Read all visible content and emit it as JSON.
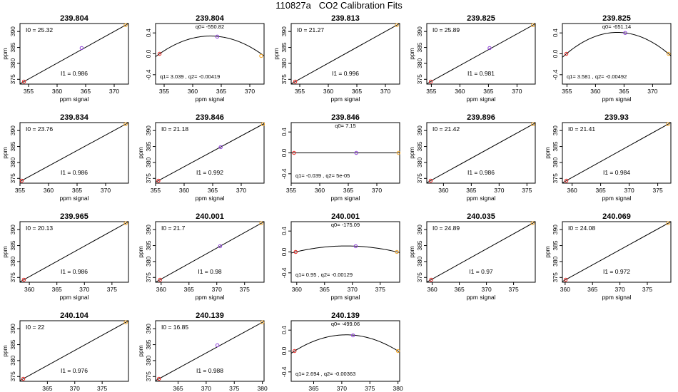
{
  "page": {
    "title": "110827a   CO2 Calibration Fits",
    "xlabel": "ppm signal",
    "ylabel": "ppm"
  },
  "chart_data": [
    {
      "type": "line",
      "subtype": "linear",
      "title": "239.804",
      "xlim": [
        353.5,
        372.5
      ],
      "ylim": [
        373.5,
        392.5
      ],
      "xticks": [
        355,
        360,
        365,
        370
      ],
      "yticks": [
        375,
        380,
        385,
        390
      ],
      "points": [
        [
          354.2,
          374.3
        ],
        [
          364.3,
          384.8
        ],
        [
          372.0,
          392.0
        ]
      ],
      "fit_line": [
        [
          354.2,
          374.3
        ],
        [
          372.0,
          392.0
        ]
      ],
      "annotations": {
        "top": "I0 = 25.32",
        "bottom": "I1 = 0.986"
      }
    },
    {
      "type": "line",
      "subtype": "quadratic",
      "title": "239.804",
      "xlim": [
        353.5,
        372.5
      ],
      "ylim": [
        -0.58,
        0.58
      ],
      "xticks": [
        355,
        360,
        365,
        370
      ],
      "yticks": [
        -0.4,
        0.0,
        0.4
      ],
      "ytick_labels": [
        "-0.4",
        "0.0",
        "0.4"
      ],
      "points": [
        [
          354.2,
          0.0
        ],
        [
          364.3,
          0.33
        ],
        [
          372.0,
          -0.04
        ]
      ],
      "vertex": [
        363.4,
        0.34
      ],
      "annotations": {
        "top": "q0= -550.82",
        "bottom": "q1= 3.039 , q2= -0.00419"
      }
    },
    {
      "type": "line",
      "subtype": "linear",
      "title": "239.813",
      "xlim": [
        353.5,
        372.5
      ],
      "ylim": [
        373.5,
        392.5
      ],
      "xticks": [
        355,
        360,
        365,
        370
      ],
      "yticks": [
        375,
        380,
        385,
        390
      ],
      "points": [
        [
          354.2,
          374.3
        ],
        [
          372.0,
          392.0
        ]
      ],
      "fit_line": [
        [
          354.2,
          374.3
        ],
        [
          372.0,
          392.0
        ]
      ],
      "annotations": {
        "top": "I0 = 21.27",
        "bottom": "I1 = 0.996"
      }
    },
    {
      "type": "line",
      "subtype": "linear",
      "title": "239.825",
      "xlim": [
        354.2,
        373.2
      ],
      "ylim": [
        373.5,
        392.5
      ],
      "xticks": [
        355,
        360,
        365,
        370
      ],
      "yticks": [
        375,
        380,
        385,
        390
      ],
      "points": [
        [
          354.9,
          374.3
        ],
        [
          365.2,
          384.8
        ],
        [
          372.8,
          392.0
        ]
      ],
      "fit_line": [
        [
          354.9,
          374.3
        ],
        [
          372.8,
          392.0
        ]
      ],
      "annotations": {
        "top": "I0 = 25.89",
        "bottom": "I1 = 0.981"
      }
    },
    {
      "type": "line",
      "subtype": "quadratic",
      "title": "239.825",
      "xlim": [
        354.2,
        373.2
      ],
      "ylim": [
        -0.58,
        0.58
      ],
      "xticks": [
        355,
        360,
        365,
        370
      ],
      "yticks": [
        -0.4,
        0.0,
        0.4
      ],
      "ytick_labels": [
        "-0.4",
        "0.0",
        "0.4"
      ],
      "points": [
        [
          354.9,
          0.0
        ],
        [
          365.2,
          0.4
        ],
        [
          372.8,
          0.0
        ]
      ],
      "vertex": [
        363.8,
        0.41
      ],
      "annotations": {
        "top": "q0= -651.14",
        "bottom": "q1= 3.581 , q2= -0.00492"
      }
    },
    {
      "type": "line",
      "subtype": "linear",
      "title": "239.834",
      "xlim": [
        355.0,
        374.0
      ],
      "ylim": [
        373.5,
        392.5
      ],
      "xticks": [
        355,
        360,
        365,
        370
      ],
      "yticks": [
        375,
        380,
        385,
        390
      ],
      "points": [
        [
          355.3,
          374.3
        ],
        [
          373.5,
          392.0
        ]
      ],
      "fit_line": [
        [
          355.3,
          374.3
        ],
        [
          373.5,
          392.0
        ]
      ],
      "annotations": {
        "top": "I0 = 23.76",
        "bottom": "I1 = 0.986"
      }
    },
    {
      "type": "line",
      "subtype": "linear",
      "title": "239.846",
      "xlim": [
        355.0,
        374.0
      ],
      "ylim": [
        373.5,
        392.5
      ],
      "xticks": [
        355,
        360,
        365,
        370
      ],
      "yticks": [
        375,
        380,
        385,
        390
      ],
      "points": [
        [
          355.5,
          374.3
        ],
        [
          366.4,
          384.8
        ],
        [
          373.8,
          392.0
        ]
      ],
      "fit_line": [
        [
          355.5,
          374.3
        ],
        [
          373.8,
          392.0
        ]
      ],
      "annotations": {
        "top": "I0 = 21.18",
        "bottom": "I1 = 0.992"
      }
    },
    {
      "type": "line",
      "subtype": "quadratic",
      "title": "239.846",
      "xlim": [
        355.0,
        374.0
      ],
      "ylim": [
        -0.58,
        0.58
      ],
      "xticks": [
        355,
        360,
        365,
        370
      ],
      "yticks": [
        -0.4,
        0.0,
        0.4
      ],
      "ytick_labels": [
        "-0.4",
        "0.0",
        "0.4"
      ],
      "points": [
        [
          355.5,
          0.0
        ],
        [
          366.4,
          0.0
        ],
        [
          373.8,
          0.0
        ]
      ],
      "vertex": [
        366.4,
        0.0
      ],
      "annotations": {
        "top": "q0= 7.15",
        "bottom": "q1= -0.039 , q2= 5e-05"
      }
    },
    {
      "type": "line",
      "subtype": "linear",
      "title": "239.896",
      "xlim": [
        357.0,
        376.5
      ],
      "ylim": [
        373.5,
        392.5
      ],
      "xticks": [
        360,
        365,
        370,
        375
      ],
      "yticks": [
        375,
        380,
        385,
        390
      ],
      "points": [
        [
          357.7,
          374.3
        ],
        [
          376.1,
          392.0
        ]
      ],
      "fit_line": [
        [
          357.7,
          374.3
        ],
        [
          376.1,
          392.0
        ]
      ],
      "annotations": {
        "top": "I0 = 21.42",
        "bottom": "I1 = 0.986"
      }
    },
    {
      "type": "line",
      "subtype": "linear",
      "title": "239.93",
      "xlim": [
        358.3,
        377.3
      ],
      "ylim": [
        373.5,
        392.5
      ],
      "xticks": [
        360,
        365,
        370,
        375
      ],
      "yticks": [
        375,
        380,
        385,
        390
      ],
      "points": [
        [
          359.0,
          374.3
        ],
        [
          376.8,
          392.0
        ]
      ],
      "fit_line": [
        [
          359.0,
          374.3
        ],
        [
          376.8,
          392.0
        ]
      ],
      "annotations": {
        "top": "I0 = 21.41",
        "bottom": "I1 = 0.984"
      }
    },
    {
      "type": "line",
      "subtype": "linear",
      "title": "239.965",
      "xlim": [
        358.3,
        378.0
      ],
      "ylim": [
        373.5,
        392.5
      ],
      "xticks": [
        360,
        365,
        370,
        375
      ],
      "yticks": [
        375,
        380,
        385,
        390
      ],
      "points": [
        [
          359.0,
          374.3
        ],
        [
          377.5,
          392.0
        ]
      ],
      "fit_line": [
        [
          359.0,
          374.3
        ],
        [
          377.5,
          392.0
        ]
      ],
      "annotations": {
        "top": "I0 = 20.13",
        "bottom": "I1 = 0.986"
      }
    },
    {
      "type": "line",
      "subtype": "linear",
      "title": "240.001",
      "xlim": [
        359.0,
        378.5
      ],
      "ylim": [
        373.5,
        392.5
      ],
      "xticks": [
        360,
        365,
        370,
        375
      ],
      "yticks": [
        375,
        380,
        385,
        390
      ],
      "points": [
        [
          359.8,
          374.3
        ],
        [
          370.6,
          384.8
        ],
        [
          378.0,
          392.0
        ]
      ],
      "fit_line": [
        [
          359.8,
          374.3
        ],
        [
          378.0,
          392.0
        ]
      ],
      "annotations": {
        "top": "I0 = 21.7",
        "bottom": "I1 = 0.98"
      }
    },
    {
      "type": "line",
      "subtype": "quadratic",
      "title": "240.001",
      "xlim": [
        359.0,
        378.5
      ],
      "ylim": [
        -0.58,
        0.58
      ],
      "xticks": [
        360,
        365,
        370,
        375
      ],
      "yticks": [
        -0.4,
        0.0,
        0.4
      ],
      "ytick_labels": [
        "-0.4",
        "0.0",
        "0.4"
      ],
      "points": [
        [
          359.8,
          0.0
        ],
        [
          370.6,
          0.11
        ],
        [
          378.0,
          0.0
        ]
      ],
      "vertex": [
        368.9,
        0.115
      ],
      "annotations": {
        "top": "q0= -175.09",
        "bottom": "q1= 0.95 , q2= -0.00129"
      }
    },
    {
      "type": "line",
      "subtype": "linear",
      "title": "240.035",
      "xlim": [
        359.0,
        379.0
      ],
      "ylim": [
        373.5,
        392.5
      ],
      "xticks": [
        360,
        365,
        370,
        375
      ],
      "yticks": [
        375,
        380,
        385,
        390
      ],
      "points": [
        [
          359.8,
          374.3
        ],
        [
          378.5,
          392.0
        ]
      ],
      "fit_line": [
        [
          359.8,
          374.3
        ],
        [
          378.5,
          392.0
        ]
      ],
      "annotations": {
        "top": "I0 = 24.89",
        "bottom": "I1 = 0.97"
      }
    },
    {
      "type": "line",
      "subtype": "linear",
      "title": "240.069",
      "xlim": [
        359.5,
        379.3
      ],
      "ylim": [
        373.5,
        392.5
      ],
      "xticks": [
        360,
        365,
        370,
        375
      ],
      "yticks": [
        375,
        380,
        385,
        390
      ],
      "points": [
        [
          360.1,
          374.3
        ],
        [
          378.8,
          392.0
        ]
      ],
      "fit_line": [
        [
          360.1,
          374.3
        ],
        [
          378.8,
          392.0
        ]
      ],
      "annotations": {
        "top": "I0 = 24.08",
        "bottom": "I1 = 0.972"
      }
    },
    {
      "type": "line",
      "subtype": "linear",
      "title": "240.104",
      "xlim": [
        360.0,
        379.8
      ],
      "ylim": [
        373.5,
        392.5
      ],
      "xticks": [
        365,
        370,
        375
      ],
      "yticks": [
        375,
        380,
        385,
        390
      ],
      "points": [
        [
          360.6,
          374.3
        ],
        [
          379.3,
          392.0
        ]
      ],
      "fit_line": [
        [
          360.6,
          374.3
        ],
        [
          379.3,
          392.0
        ]
      ],
      "annotations": {
        "top": "I0 = 22",
        "bottom": "I1 = 0.976"
      }
    },
    {
      "type": "line",
      "subtype": "linear",
      "title": "240.139",
      "xlim": [
        361.0,
        380.3
      ],
      "ylim": [
        373.5,
        392.5
      ],
      "xticks": [
        365,
        370,
        375,
        380
      ],
      "yticks": [
        375,
        380,
        385,
        390
      ],
      "points": [
        [
          361.6,
          374.3
        ],
        [
          372.0,
          384.8
        ],
        [
          380.0,
          392.0
        ]
      ],
      "fit_line": [
        [
          361.6,
          374.3
        ],
        [
          380.0,
          392.0
        ]
      ],
      "annotations": {
        "top": "I0 = 16.85",
        "bottom": "I1 = 0.988"
      }
    },
    {
      "type": "line",
      "subtype": "quadratic",
      "title": "240.139",
      "xlim": [
        361.0,
        380.3
      ],
      "ylim": [
        -0.58,
        0.58
      ],
      "xticks": [
        365,
        370,
        375,
        380
      ],
      "yticks": [
        -0.4,
        0.0,
        0.4
      ],
      "ytick_labels": [
        "-0.4",
        "0.0",
        "0.4"
      ],
      "points": [
        [
          361.6,
          0.0
        ],
        [
          372.0,
          0.3
        ],
        [
          380.0,
          0.0
        ]
      ],
      "vertex": [
        370.8,
        0.31
      ],
      "annotations": {
        "top": "q0= -499.06",
        "bottom": "q1= 2.694 , q2= -0.00363"
      }
    }
  ]
}
